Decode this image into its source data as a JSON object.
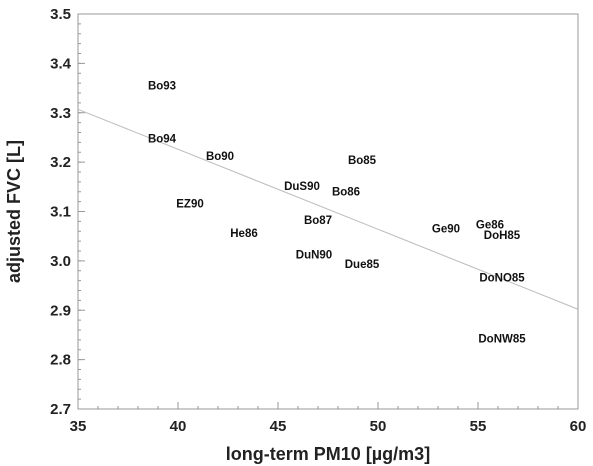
{
  "chart_data": {
    "type": "scatter",
    "title": "",
    "xlabel": "long-term PM10 [µg/m3]",
    "ylabel": "adjusted FVC [L]",
    "xlim": [
      35,
      60
    ],
    "ylim": [
      2.7,
      3.5
    ],
    "x_ticks": [
      "35",
      "40",
      "45",
      "50",
      "55",
      "60"
    ],
    "y_ticks": [
      "2.7",
      "2.8",
      "2.9",
      "3.0",
      "3.1",
      "3.2",
      "3.3",
      "3.4",
      "3.5"
    ],
    "grid": false,
    "legend": "none",
    "points": [
      {
        "label": "Bo93",
        "x": 39.2,
        "y": 3.355
      },
      {
        "label": "Bo94",
        "x": 39.2,
        "y": 3.248
      },
      {
        "label": "Bo90",
        "x": 42.1,
        "y": 3.212
      },
      {
        "label": "Bo85",
        "x": 49.2,
        "y": 3.204
      },
      {
        "label": "DuS90",
        "x": 46.2,
        "y": 3.152
      },
      {
        "label": "Bo86",
        "x": 48.4,
        "y": 3.141
      },
      {
        "label": "EZ90",
        "x": 40.6,
        "y": 3.116
      },
      {
        "label": "Bo87",
        "x": 47.0,
        "y": 3.083
      },
      {
        "label": "Ge90",
        "x": 53.4,
        "y": 3.066
      },
      {
        "label": "Ge86",
        "x": 55.6,
        "y": 3.074
      },
      {
        "label": "DoH85",
        "x": 56.2,
        "y": 3.052
      },
      {
        "label": "He86",
        "x": 43.3,
        "y": 3.056
      },
      {
        "label": "DuN90",
        "x": 46.8,
        "y": 3.013
      },
      {
        "label": "Due85",
        "x": 49.2,
        "y": 2.994
      },
      {
        "label": "DoNO85",
        "x": 56.2,
        "y": 2.966
      },
      {
        "label": "DoNW85",
        "x": 56.2,
        "y": 2.843
      }
    ],
    "regression_line": {
      "x": [
        35,
        60
      ],
      "y": [
        3.307,
        2.902
      ]
    },
    "line_color": "#bbbbbb",
    "axis_color": "#999999"
  }
}
